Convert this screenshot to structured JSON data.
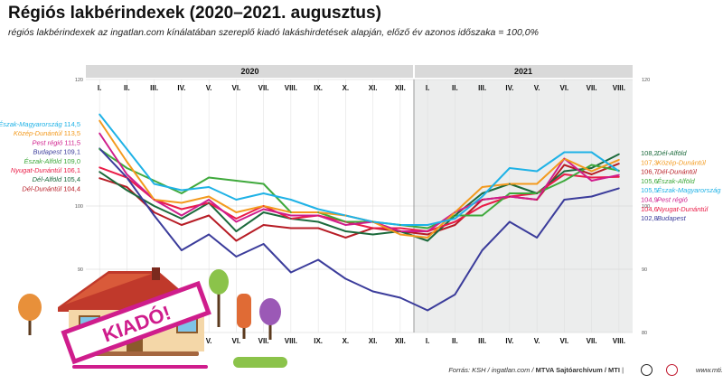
{
  "title": "Régiós lakbérindexek (2020–2021. augusztus)",
  "subtitle": "régiós lakbérindexek az ingatlan.com kínálatában szereplő kiadó lakáshirdetések alapján, előző év azonos időszaka = 100,0%",
  "source": {
    "prefix": "Forrás: KSH / ingatlan.com / ",
    "bold": "MTVA Sajtóarchívum / MTI",
    "sep": " |",
    "web": "www.mti.hu"
  },
  "illustration": {
    "sign_text": "KIADÓ!"
  },
  "chart_data": {
    "type": "line",
    "year_labels": [
      "2020",
      "2021"
    ],
    "categories": [
      "I.",
      "II.",
      "III.",
      "IV.",
      "V.",
      "VI.",
      "VII.",
      "VIII.",
      "IX.",
      "X.",
      "XI.",
      "XII.",
      "I.",
      "II.",
      "III.",
      "IV.",
      "V.",
      "VI.",
      "VII.",
      "VIII."
    ],
    "ylim": [
      80,
      120
    ],
    "yticks": [
      80,
      90,
      100,
      120
    ],
    "grid": true,
    "series": [
      {
        "name": "Észak-Magyarország",
        "color": "#1fb2e6",
        "start_label": "114,5",
        "end_label": "105,5",
        "values": [
          114.5,
          109.0,
          103.5,
          102.5,
          103.0,
          101.0,
          102.0,
          101.0,
          99.5,
          98.5,
          97.5,
          97.0,
          97.0,
          98.0,
          101.5,
          106.0,
          105.5,
          108.5,
          108.5,
          105.5
        ]
      },
      {
        "name": "Közép-Dunántúl",
        "color": "#f39a1e",
        "start_label": "113,5",
        "end_label": "107,3",
        "values": [
          113.5,
          107.0,
          101.0,
          100.5,
          101.5,
          99.0,
          100.0,
          99.0,
          99.0,
          98.5,
          97.5,
          95.5,
          95.0,
          99.0,
          103.0,
          103.5,
          103.5,
          107.5,
          105.5,
          107.3
        ]
      },
      {
        "name": "Pest régió",
        "color": "#cf1d8c",
        "start_label": "111,5",
        "end_label": "104,9",
        "values": [
          111.5,
          105.0,
          101.0,
          98.5,
          101.0,
          97.5,
          99.5,
          98.5,
          98.5,
          97.0,
          97.5,
          96.0,
          96.0,
          99.0,
          101.0,
          101.5,
          101.0,
          107.5,
          104.0,
          104.9
        ]
      },
      {
        "name": "Budapest",
        "color": "#3b3c9b",
        "start_label": "109,1",
        "end_label": "102,8",
        "values": [
          109.1,
          104.5,
          98.5,
          93.0,
          95.5,
          92.0,
          94.0,
          89.5,
          91.5,
          88.5,
          86.5,
          85.5,
          83.5,
          86.0,
          93.0,
          97.5,
          95.0,
          101.0,
          101.5,
          102.8
        ]
      },
      {
        "name": "Észak-Alföld",
        "color": "#3fa93c",
        "start_label": "109,0",
        "end_label": "105,6",
        "values": [
          109.0,
          106.0,
          104.0,
          102.0,
          104.5,
          104.0,
          103.5,
          99.0,
          99.0,
          97.5,
          97.5,
          97.0,
          96.5,
          98.5,
          98.5,
          102.0,
          102.0,
          104.0,
          106.5,
          105.6
        ]
      },
      {
        "name": "Nyugat-Dunántúl",
        "color": "#ea1c47",
        "start_label": "106,1",
        "end_label": "104,6",
        "values": [
          106.1,
          104.5,
          101.0,
          99.5,
          100.5,
          98.0,
          100.0,
          98.0,
          98.5,
          97.5,
          96.5,
          96.5,
          96.0,
          97.5,
          100.0,
          101.5,
          102.0,
          105.0,
          104.5,
          104.6
        ]
      },
      {
        "name": "Dél-Alföld",
        "color": "#1c6a3c",
        "start_label": "105,4",
        "end_label": "108,2",
        "values": [
          105.4,
          102.5,
          100.0,
          98.0,
          100.5,
          96.0,
          99.0,
          98.0,
          97.5,
          96.0,
          95.5,
          96.0,
          94.5,
          98.5,
          102.0,
          103.5,
          102.0,
          105.5,
          106.0,
          108.2
        ]
      },
      {
        "name": "Dél-Dunántúl",
        "color": "#b71c25",
        "start_label": "104,4",
        "end_label": "106,7",
        "values": [
          104.4,
          103.0,
          99.0,
          97.0,
          98.5,
          94.5,
          97.0,
          96.5,
          96.5,
          95.0,
          96.5,
          96.0,
          95.5,
          97.0,
          101.0,
          101.5,
          101.0,
          106.5,
          105.0,
          106.7
        ]
      }
    ],
    "right_label_order": [
      "Dél-Alföld",
      "Közép-Dunántúl",
      "Dél-Dunántúl",
      "Észak-Alföld",
      "Észak-Magyarország",
      "Pest régió",
      "Nyugat-Dunántúl",
      "Budapest"
    ]
  }
}
